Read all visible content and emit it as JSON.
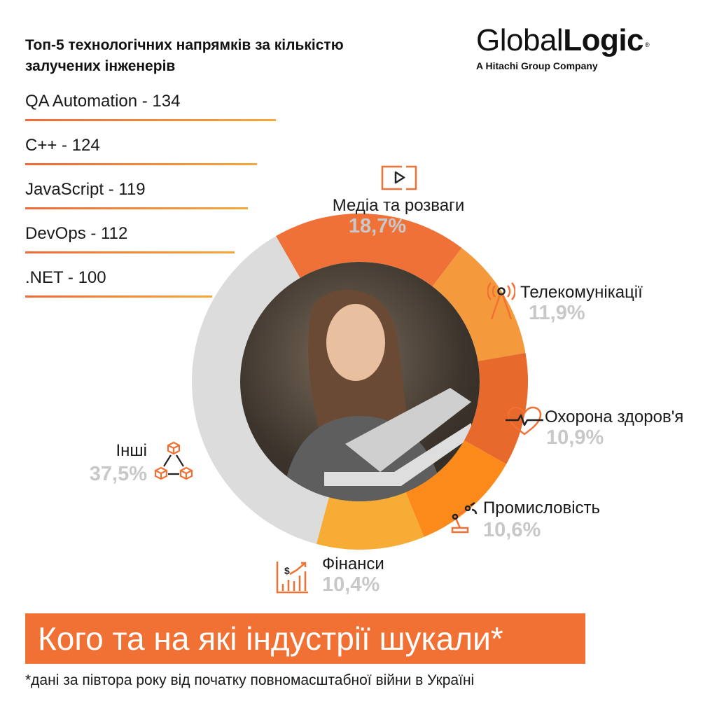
{
  "title": "Топ-5 технологічних напрямків за кількістю залучених інженерів",
  "logo": {
    "main_light": "Global",
    "main_bold": "Logic",
    "reg": "®",
    "sub": "A Hitachi Group Company"
  },
  "top5": [
    {
      "label": "QA Automation - 134",
      "value": 134
    },
    {
      "label": "C++ - 124",
      "value": 124
    },
    {
      "label": "JavaScript - 119",
      "value": 119
    },
    {
      "label": "DevOps - 112",
      "value": 112
    },
    {
      "label": ".NET - 100",
      "value": 100
    }
  ],
  "chart_data": {
    "type": "pie",
    "donut": true,
    "categories": [
      "Медіа та розваги",
      "Телекомунікації",
      "Охорона здоров'я",
      "Промисловість",
      "Фінанси",
      "Інші"
    ],
    "values": [
      18.7,
      11.9,
      10.9,
      10.6,
      10.4,
      37.5
    ],
    "labels": [
      "18,7%",
      "11,9%",
      "10,9%",
      "10,6%",
      "10,4%",
      "37,5%"
    ],
    "colors": [
      "#f07138",
      "#f59a3c",
      "#e8692c",
      "#fb8a1a",
      "#f7ac35",
      "#dcdcdc"
    ],
    "start_angle_deg": -30
  },
  "segments": [
    {
      "name": "Медіа та розваги",
      "pct": "18,7%",
      "icon": "play-icon"
    },
    {
      "name": "Телекомунікації",
      "pct": "11,9%",
      "icon": "antenna-icon"
    },
    {
      "name": "Охорона здоров'я",
      "pct": "10,9%",
      "icon": "heart-pulse-icon"
    },
    {
      "name": "Промисловість",
      "pct": "10,6%",
      "icon": "robot-arm-icon"
    },
    {
      "name": "Фінанси",
      "pct": "10,4%",
      "icon": "finance-chart-icon"
    },
    {
      "name": "Інші",
      "pct": "37,5%",
      "icon": "cubes-network-icon"
    }
  ],
  "accent": "#f07133",
  "banner": "Кого та на які індустрії шукали*",
  "footnote": "*дані за півтора року від початку повномасштабної війни в Україні"
}
